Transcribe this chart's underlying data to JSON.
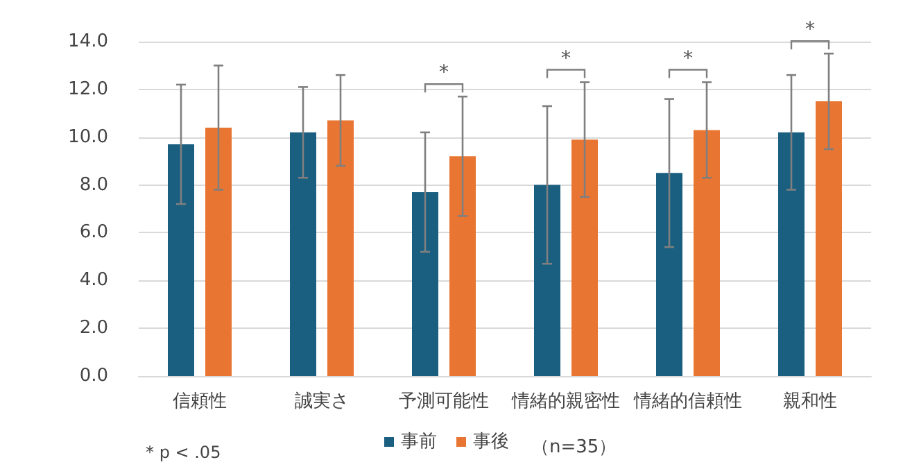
{
  "chart_data": {
    "type": "bar",
    "categories": [
      "信頼性",
      "誠実さ",
      "予測可能性",
      "情緒的親密性",
      "情緒的信頼性",
      "親和性"
    ],
    "series": [
      {
        "name": "事前",
        "color": "#1a5f80",
        "values": [
          9.7,
          10.2,
          7.7,
          8.0,
          8.5,
          10.2
        ],
        "errors": [
          2.5,
          1.9,
          2.5,
          3.3,
          3.1,
          2.4
        ]
      },
      {
        "name": "事後",
        "color": "#e97532",
        "values": [
          10.4,
          10.7,
          9.2,
          9.9,
          10.3,
          11.5
        ],
        "errors": [
          2.6,
          1.9,
          2.5,
          2.4,
          2.0,
          2.0
        ]
      }
    ],
    "ylim": [
      0,
      14
    ],
    "yticks": [
      {
        "value": 0,
        "label": "0.0"
      },
      {
        "value": 2,
        "label": "2.0"
      },
      {
        "value": 4,
        "label": "4.0"
      },
      {
        "value": 6,
        "label": "6.0"
      },
      {
        "value": 8,
        "label": "8.0"
      },
      {
        "value": 10,
        "label": "10.0"
      },
      {
        "value": 12,
        "label": "12.0"
      },
      {
        "value": 14,
        "label": "14.0"
      }
    ],
    "grid": "y",
    "legend": "bottom",
    "annotations": [
      "*",
      "*",
      "*",
      "*",
      "* p < .05",
      "（n=35）"
    ]
  }
}
